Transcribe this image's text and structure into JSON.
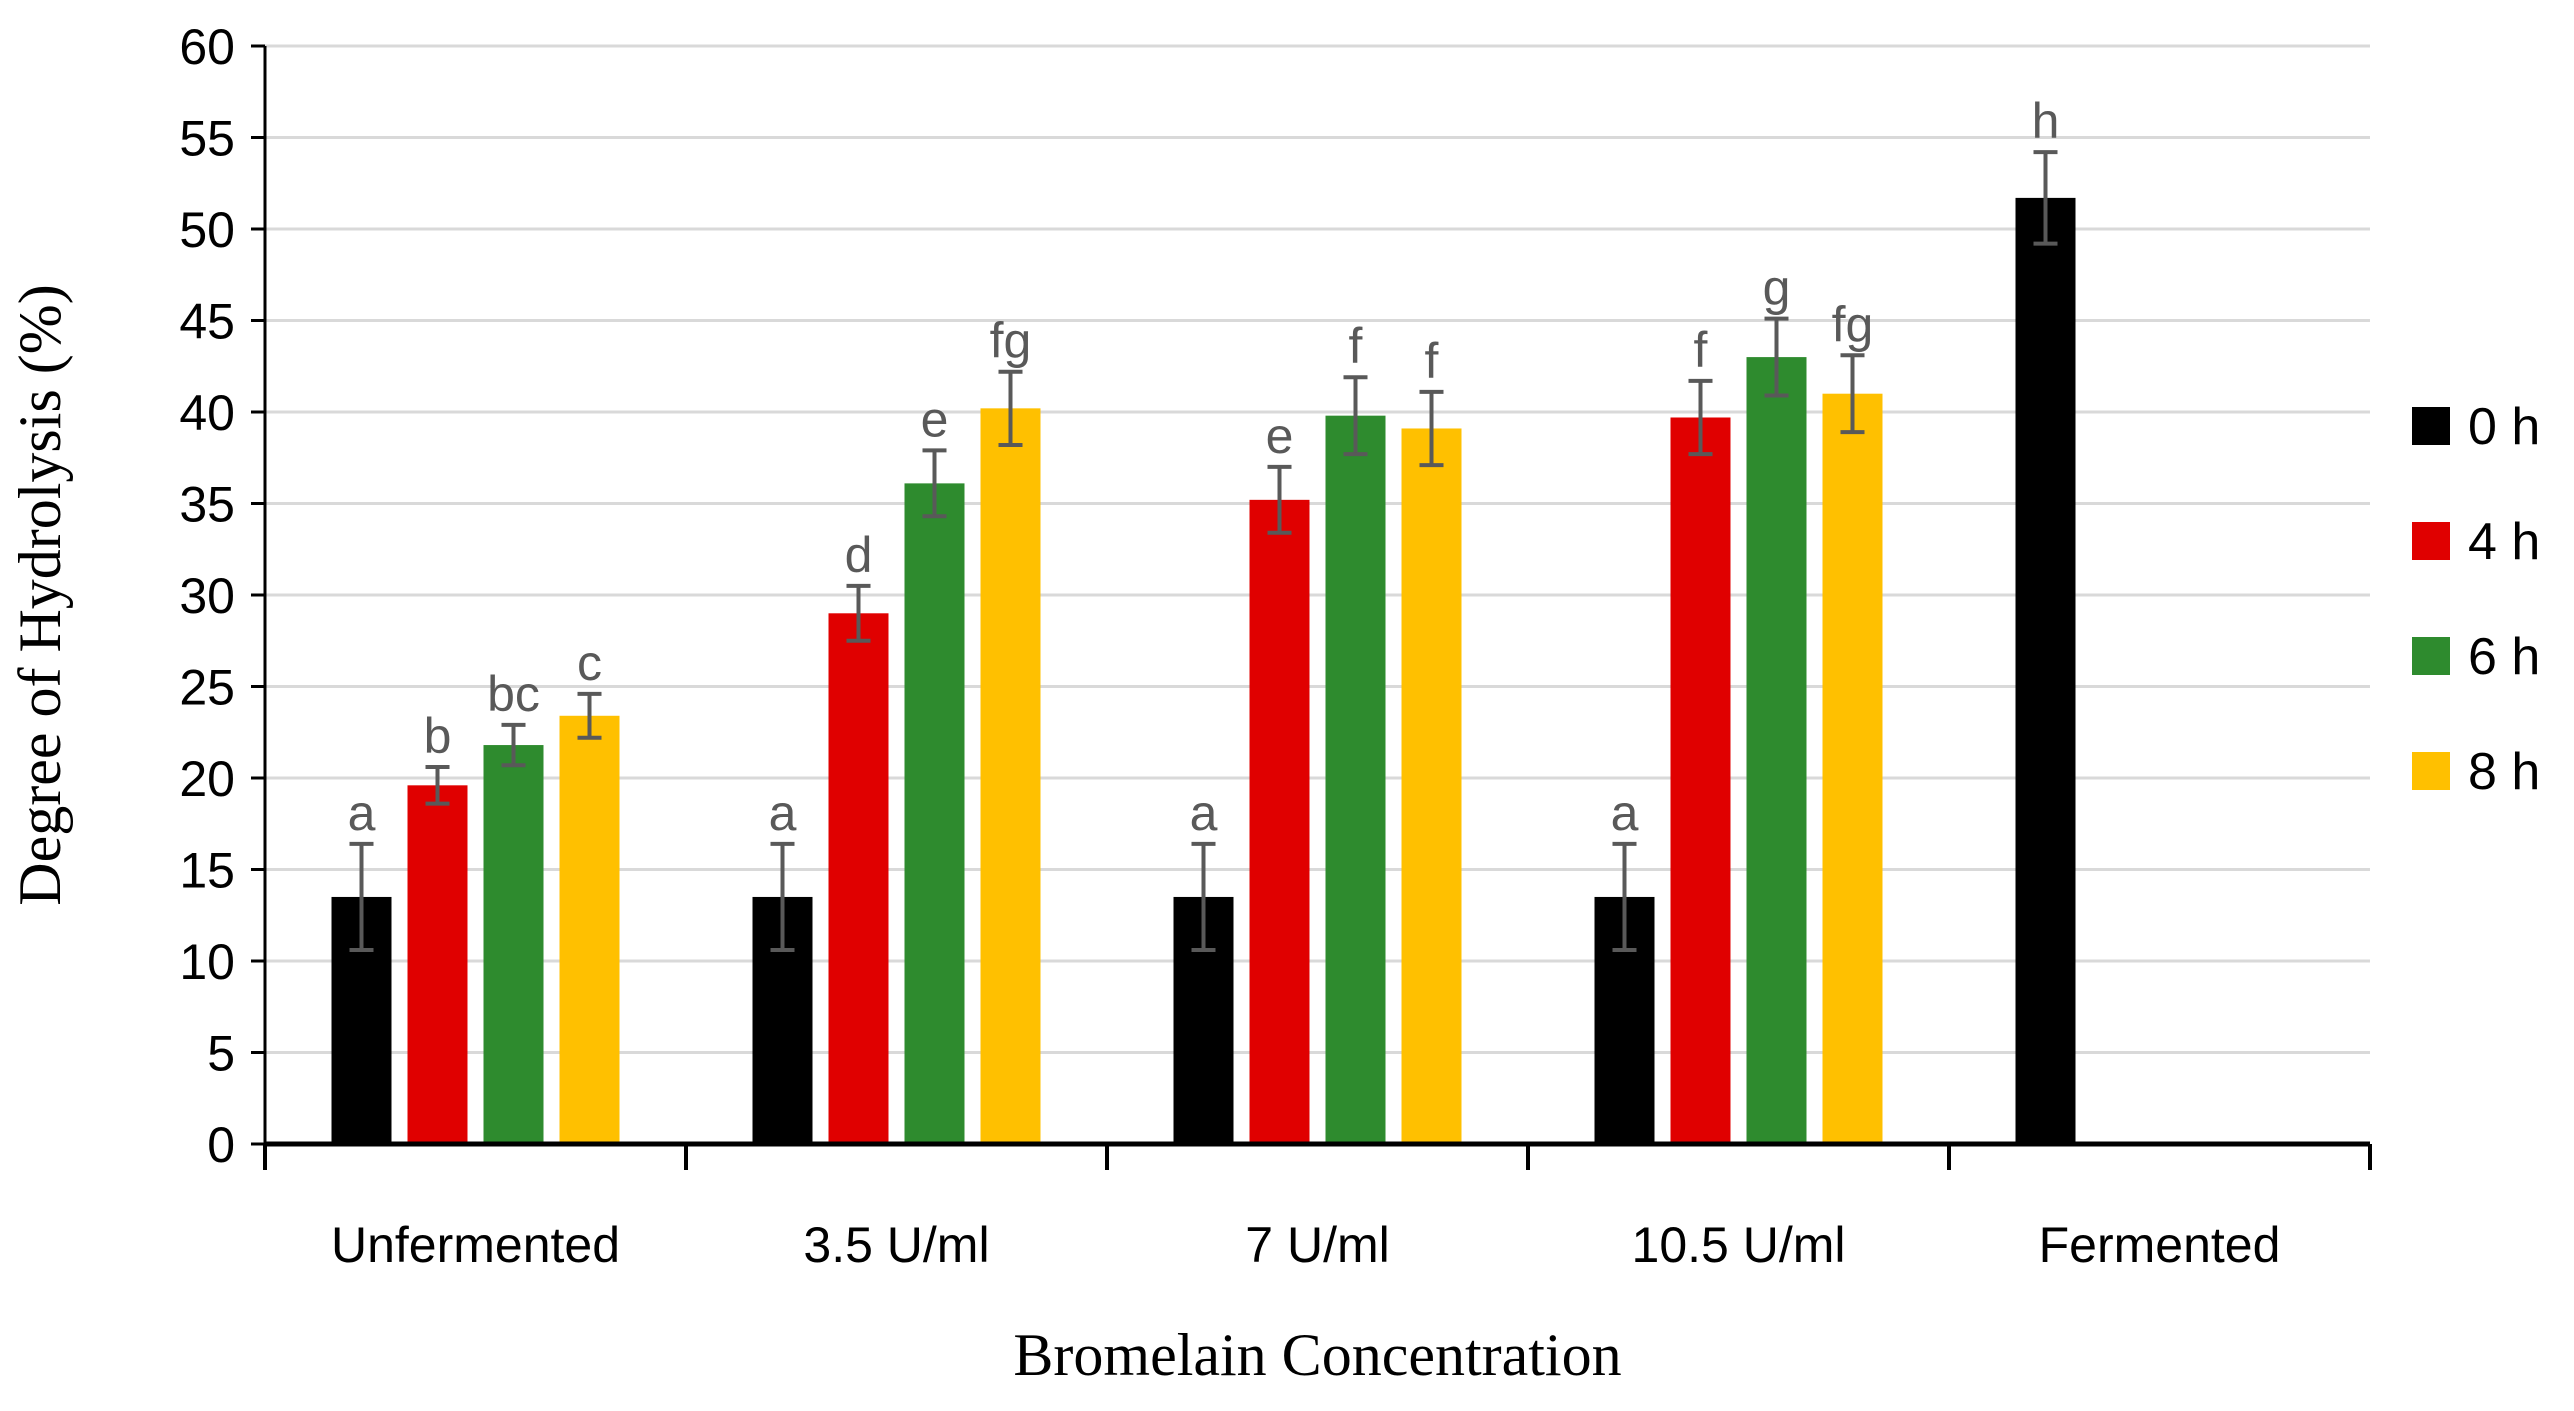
{
  "chart_data": {
    "type": "bar",
    "xlabel": "Bromelain Concentration",
    "ylabel": "Degree of Hydrolysis (%)",
    "ylim": [
      0,
      60
    ],
    "yticks": [
      0,
      5,
      10,
      15,
      20,
      25,
      30,
      35,
      40,
      45,
      50,
      55,
      60
    ],
    "grid": true,
    "legend_position": "right",
    "categories": [
      "Unfermented",
      "3.5 U/ml",
      "7 U/ml",
      "10.5 U/ml",
      "Fermented"
    ],
    "series": [
      {
        "name": "0 h",
        "color": "#000000",
        "values": [
          13.5,
          13.5,
          13.5,
          13.5,
          51.7
        ],
        "errors": [
          2.9,
          2.9,
          2.9,
          2.9,
          2.5
        ],
        "labels": [
          "a",
          "a",
          "a",
          "a",
          "h"
        ]
      },
      {
        "name": "4 h",
        "color": "#e00000",
        "values": [
          19.6,
          29.0,
          35.2,
          39.7,
          null
        ],
        "errors": [
          1.0,
          1.5,
          1.8,
          2.0,
          null
        ],
        "labels": [
          "b",
          "d",
          "e",
          "f",
          null
        ]
      },
      {
        "name": "6 h",
        "color": "#2e8b2e",
        "values": [
          21.8,
          36.1,
          39.8,
          43.0,
          null
        ],
        "errors": [
          1.1,
          1.8,
          2.1,
          2.1,
          null
        ],
        "labels": [
          "bc",
          "e",
          "f",
          "g",
          null
        ]
      },
      {
        "name": "8 h",
        "color": "#ffc000",
        "values": [
          23.4,
          40.2,
          39.1,
          41.0,
          null
        ],
        "errors": [
          1.2,
          2.0,
          2.0,
          2.1,
          null
        ],
        "labels": [
          "c",
          "fg",
          "f",
          "fg",
          null
        ]
      }
    ],
    "colors": {
      "grid": "#d9d9d9",
      "axis": "#000000",
      "error_bar": "#595959"
    }
  }
}
